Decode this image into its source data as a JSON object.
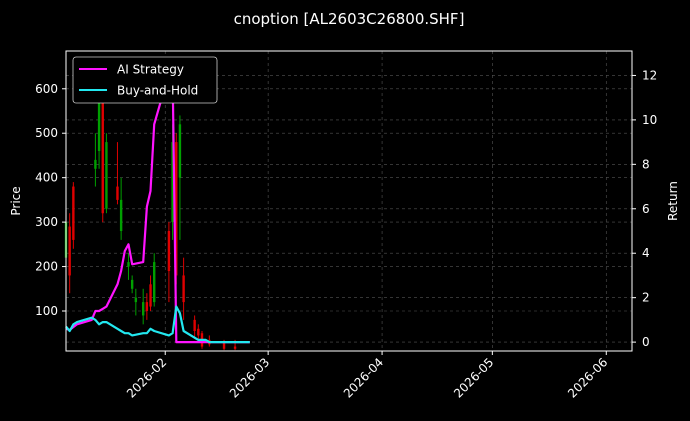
{
  "chart_data": {
    "type": "line",
    "title": "cnoption [AL2603C26800.SHF]",
    "xlabel": "",
    "ylabel": "Price",
    "y2label": "Return",
    "xlim": [
      "2026-01-05",
      "2026-06-08"
    ],
    "ylim": [
      10,
      685
    ],
    "y2lim": [
      -0.4,
      13.1
    ],
    "x_ticks": [
      "2026-02-01",
      "2026-03-01",
      "2026-04-01",
      "2026-05-01",
      "2026-06-01"
    ],
    "x_tick_labels": [
      "2026-02",
      "2026-03",
      "2026-04",
      "2026-05",
      "2026-06"
    ],
    "y_ticks": [
      100,
      200,
      300,
      400,
      500,
      600
    ],
    "y2_ticks": [
      0,
      2,
      4,
      6,
      8,
      10,
      12
    ],
    "grid": true,
    "legend_position": "upper-left",
    "colors": {
      "background": "#000000",
      "up_candle": "#00a000",
      "down_candle": "#e00000",
      "ai_strategy": "#ff14ff",
      "buy_and_hold": "#22e8f0",
      "grid": "#555555",
      "text": "#ffffff"
    },
    "candles": [
      {
        "date": "2026-01-05",
        "open": 220,
        "high": 330,
        "low": 150,
        "close": 300
      },
      {
        "date": "2026-01-06",
        "open": 290,
        "high": 320,
        "low": 140,
        "close": 180
      },
      {
        "date": "2026-01-07",
        "open": 380,
        "high": 390,
        "low": 240,
        "close": 260
      },
      {
        "date": "2026-01-13",
        "open": 420,
        "high": 500,
        "low": 380,
        "close": 440
      },
      {
        "date": "2026-01-14",
        "open": 460,
        "high": 620,
        "low": 420,
        "close": 600
      },
      {
        "date": "2026-01-15",
        "open": 600,
        "high": 610,
        "low": 300,
        "close": 320
      },
      {
        "date": "2026-01-16",
        "open": 330,
        "high": 500,
        "low": 320,
        "close": 480
      },
      {
        "date": "2026-01-19",
        "open": 380,
        "high": 480,
        "low": 340,
        "close": 350
      },
      {
        "date": "2026-01-20",
        "open": 280,
        "high": 400,
        "low": 260,
        "close": 350
      },
      {
        "date": "2026-01-22",
        "open": 200,
        "high": 230,
        "low": 170,
        "close": 210
      },
      {
        "date": "2026-01-23",
        "open": 150,
        "high": 180,
        "low": 140,
        "close": 170
      },
      {
        "date": "2026-01-24",
        "open": 120,
        "high": 150,
        "low": 90,
        "close": 130
      },
      {
        "date": "2026-01-26",
        "open": 90,
        "high": 150,
        "low": 70,
        "close": 120
      },
      {
        "date": "2026-01-27",
        "open": 120,
        "high": 140,
        "low": 80,
        "close": 100
      },
      {
        "date": "2026-01-28",
        "open": 160,
        "high": 180,
        "low": 100,
        "close": 110
      },
      {
        "date": "2026-01-29",
        "open": 120,
        "high": 230,
        "low": 110,
        "close": 210
      },
      {
        "date": "2026-02-02",
        "open": 280,
        "high": 300,
        "low": 120,
        "close": 190
      },
      {
        "date": "2026-02-03",
        "open": 300,
        "high": 520,
        "low": 260,
        "close": 480
      },
      {
        "date": "2026-02-04",
        "open": 480,
        "high": 500,
        "low": 160,
        "close": 180
      },
      {
        "date": "2026-02-05",
        "open": 400,
        "high": 540,
        "low": 260,
        "close": 520
      },
      {
        "date": "2026-02-06",
        "open": 180,
        "high": 220,
        "low": 80,
        "close": 120
      },
      {
        "date": "2026-02-09",
        "open": 80,
        "high": 90,
        "low": 40,
        "close": 55
      },
      {
        "date": "2026-02-10",
        "open": 60,
        "high": 70,
        "low": 35,
        "close": 45
      },
      {
        "date": "2026-02-11",
        "open": 50,
        "high": 55,
        "low": 15,
        "close": 20
      },
      {
        "date": "2026-02-13",
        "open": 35,
        "high": 45,
        "low": 20,
        "close": 25
      },
      {
        "date": "2026-02-17",
        "open": 30,
        "high": 35,
        "low": 12,
        "close": 15
      },
      {
        "date": "2026-02-20",
        "open": 20,
        "high": 35,
        "low": 12,
        "close": 15
      }
    ],
    "series": [
      {
        "name": "AI Strategy",
        "color": "#ff14ff",
        "x": [
          "2026-01-05",
          "2026-01-06",
          "2026-01-08",
          "2026-01-12",
          "2026-01-13",
          "2026-01-14",
          "2026-01-15",
          "2026-01-16",
          "2026-01-19",
          "2026-01-20",
          "2026-01-21",
          "2026-01-22",
          "2026-01-23",
          "2026-01-26",
          "2026-01-27",
          "2026-01-28",
          "2026-01-29",
          "2026-02-02",
          "2026-02-03",
          "2026-02-04",
          "2026-02-09",
          "2026-02-10",
          "2026-02-11",
          "2026-02-12",
          "2026-02-13",
          "2026-02-16",
          "2026-02-20",
          "2026-02-24"
        ],
        "values": [
          0.6,
          0.55,
          0.8,
          1.0,
          1.4,
          1.4,
          1.5,
          1.6,
          2.6,
          3.2,
          4.1,
          4.4,
          3.5,
          3.6,
          6.1,
          6.8,
          9.8,
          12.1,
          12.1,
          0.0,
          0.0,
          0.0,
          0.0,
          0.0,
          0.0,
          0.0,
          0.0,
          0.0
        ]
      },
      {
        "name": "Buy-and-Hold",
        "color": "#22e8f0",
        "x": [
          "2026-01-05",
          "2026-01-06",
          "2026-01-07",
          "2026-01-08",
          "2026-01-12",
          "2026-01-13",
          "2026-01-14",
          "2026-01-15",
          "2026-01-16",
          "2026-01-19",
          "2026-01-20",
          "2026-01-21",
          "2026-01-22",
          "2026-01-23",
          "2026-01-26",
          "2026-01-27",
          "2026-01-28",
          "2026-01-29",
          "2026-02-02",
          "2026-02-03",
          "2026-02-04",
          "2026-02-05",
          "2026-02-06",
          "2026-02-09",
          "2026-02-10",
          "2026-02-11",
          "2026-02-12",
          "2026-02-13",
          "2026-02-16",
          "2026-02-20",
          "2026-02-24"
        ],
        "values": [
          0.7,
          0.5,
          0.8,
          0.9,
          1.1,
          1.0,
          0.8,
          0.9,
          0.9,
          0.6,
          0.5,
          0.4,
          0.4,
          0.3,
          0.4,
          0.4,
          0.6,
          0.5,
          0.3,
          0.4,
          1.6,
          1.3,
          0.5,
          0.2,
          0.1,
          0.1,
          0.1,
          0.0,
          0.0,
          0.0,
          0.0
        ]
      }
    ]
  }
}
